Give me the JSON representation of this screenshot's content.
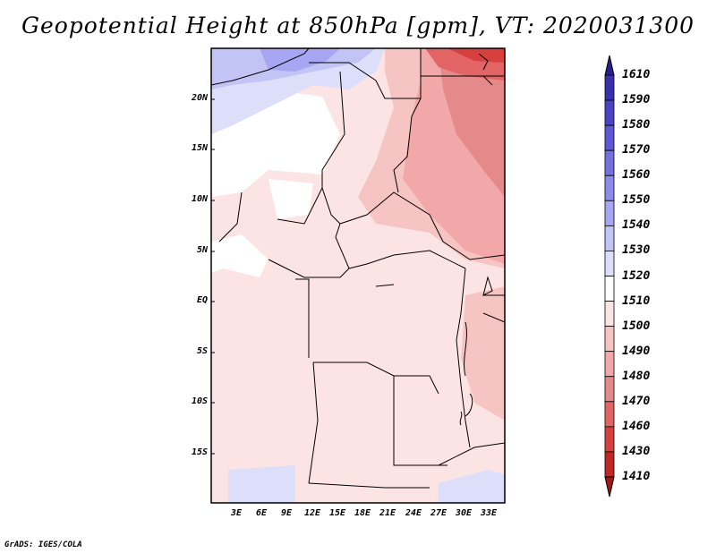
{
  "title": "Geopotential Height at 850hPa [gpm], VT: 2020031300",
  "footer": "GrADS: IGES/COLA",
  "map": {
    "lat_labels": [
      "20N",
      "15N",
      "10N",
      "5N",
      "EQ",
      "5S",
      "10S",
      "15S"
    ],
    "lon_labels": [
      "3E",
      "6E",
      "9E",
      "12E",
      "15E",
      "18E",
      "21E",
      "24E",
      "27E",
      "30E",
      "33E"
    ]
  },
  "colorbar": {
    "labels": [
      "1610",
      "1590",
      "1580",
      "1570",
      "1560",
      "1550",
      "1540",
      "1530",
      "1520",
      "1510",
      "1500",
      "1490",
      "1480",
      "1470",
      "1460",
      "1430",
      "1410"
    ],
    "colors": [
      "#2a1f8f",
      "#3a2fae",
      "#4b42c6",
      "#5e58d6",
      "#7470e0",
      "#8c8aea",
      "#a6a6f2",
      "#c2c4f6",
      "#dcdefa",
      "#ffffff",
      "#fde4e4",
      "#f7c4c4",
      "#f2a8a8",
      "#e48a8a",
      "#e26464",
      "#d84040",
      "#c02626",
      "#a01818"
    ]
  }
}
